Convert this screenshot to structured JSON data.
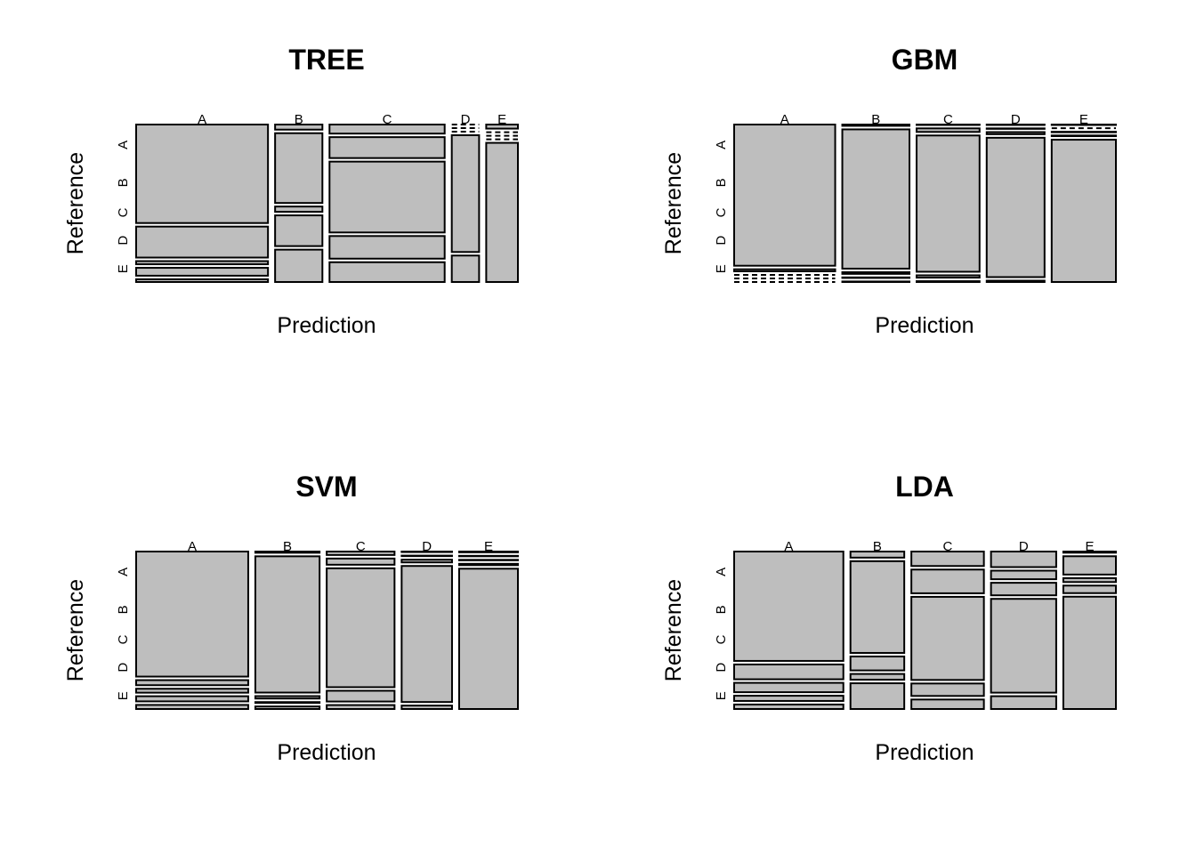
{
  "figure": {
    "background": "#ffffff",
    "tile_fill": "#bebebe",
    "tile_stroke": "#000000"
  },
  "chart_data": [
    {
      "type": "mosaic",
      "title": "TREE",
      "xlabel": "Prediction",
      "ylabel": "Reference",
      "x_categories": [
        "A",
        "B",
        "C",
        "D",
        "E"
      ],
      "y_categories": [
        "A",
        "B",
        "C",
        "D",
        "E"
      ],
      "matrix": [
        [
          1510,
          28,
          121,
          0,
          15
        ],
        [
          475,
          384,
          280,
          0,
          0
        ],
        [
          48,
          29,
          949,
          0,
          0
        ],
        [
          121,
          169,
          303,
          371,
          0
        ],
        [
          42,
          178,
          265,
          84,
          513
        ]
      ]
    },
    {
      "type": "mosaic",
      "title": "GBM",
      "xlabel": "Prediction",
      "ylabel": "Reference",
      "x_categories": [
        "A",
        "B",
        "C",
        "D",
        "E"
      ],
      "y_categories": [
        "A",
        "B",
        "C",
        "D",
        "E"
      ],
      "matrix": [
        [
          1659,
          10,
          2,
          2,
          1
        ],
        [
          24,
          1088,
          26,
          1,
          0
        ],
        [
          0,
          13,
          998,
          14,
          1
        ],
        [
          0,
          4,
          17,
          938,
          5
        ],
        [
          0,
          4,
          6,
          9,
          1063
        ]
      ]
    },
    {
      "type": "mosaic",
      "title": "SVM",
      "xlabel": "Prediction",
      "ylabel": "Reference",
      "x_categories": [
        "A",
        "B",
        "C",
        "D",
        "E"
      ],
      "y_categories": [
        "A",
        "B",
        "C",
        "D",
        "E"
      ],
      "matrix": [
        [
          1630,
          9,
          27,
          3,
          5
        ],
        [
          66,
          1018,
          49,
          3,
          3
        ],
        [
          51,
          18,
          938,
          16,
          3
        ],
        [
          67,
          6,
          85,
          797,
          9
        ],
        [
          53,
          19,
          31,
          20,
          959
        ]
      ]
    },
    {
      "type": "mosaic",
      "title": "LDA",
      "xlabel": "Prediction",
      "ylabel": "Reference",
      "x_categories": [
        "A",
        "B",
        "C",
        "D",
        "E"
      ],
      "y_categories": [
        "A",
        "B",
        "C",
        "D",
        "E"
      ],
      "matrix": [
        [
          1389,
          38,
          122,
          118,
          7
        ],
        [
          188,
          574,
          200,
          65,
          112
        ],
        [
          119,
          87,
          701,
          95,
          24
        ],
        [
          66,
          36,
          105,
          711,
          46
        ],
        [
          57,
          161,
          80,
          97,
          687
        ]
      ]
    }
  ]
}
